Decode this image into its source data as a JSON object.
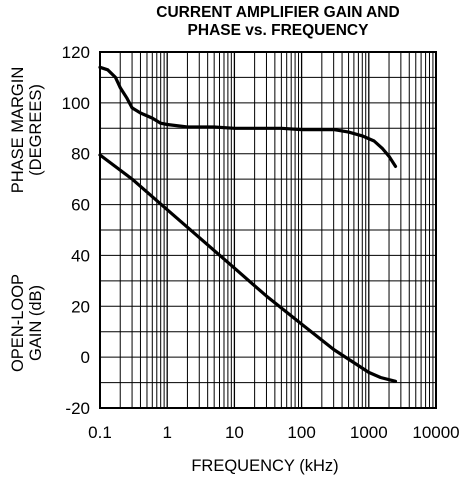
{
  "chart_data": {
    "type": "line",
    "title_lines": [
      "CURRENT AMPLIFIER GAIN AND",
      "PHASE vs. FREQUENCY"
    ],
    "xlabel": "FREQUENCY (kHz)",
    "ylabel_upper_lines": [
      "PHASE MARGIN",
      "(DEGREES)"
    ],
    "ylabel_lower_lines": [
      "OPEN-LOOP",
      "GAIN (dB)"
    ],
    "x_scale": "log",
    "xlim": [
      0.1,
      10000
    ],
    "ylim": [
      -20,
      120
    ],
    "x_ticks": [
      0.1,
      1,
      10,
      100,
      1000,
      10000
    ],
    "x_tick_labels": [
      "0.1",
      "1",
      "10",
      "100",
      "1000",
      "10000"
    ],
    "y_ticks": [
      -20,
      0,
      20,
      40,
      60,
      80,
      100,
      120
    ],
    "y_tick_labels": [
      "-20",
      "0",
      "20",
      "40",
      "60",
      "80",
      "100",
      "120"
    ],
    "grid": true,
    "series": [
      {
        "x": [
          0.1,
          0.13,
          0.17,
          0.2,
          0.25,
          0.3,
          0.4,
          0.6,
          0.8,
          1,
          2,
          5,
          10,
          50,
          100,
          300,
          500,
          800,
          1200,
          1600,
          2000,
          2500
        ],
        "y": [
          114,
          113,
          110,
          106,
          102,
          98,
          96,
          94,
          92,
          91.5,
          90.5,
          90.5,
          90,
          90,
          89.5,
          89.5,
          88.5,
          87,
          85,
          82,
          79,
          75
        ]
      },
      {
        "x": [
          0.1,
          0.3,
          1,
          3,
          10,
          30,
          100,
          300,
          1000,
          1500,
          2500
        ],
        "y": [
          79.5,
          70,
          58,
          47,
          35,
          24,
          13,
          3,
          -6,
          -8,
          -9.5
        ]
      }
    ]
  }
}
